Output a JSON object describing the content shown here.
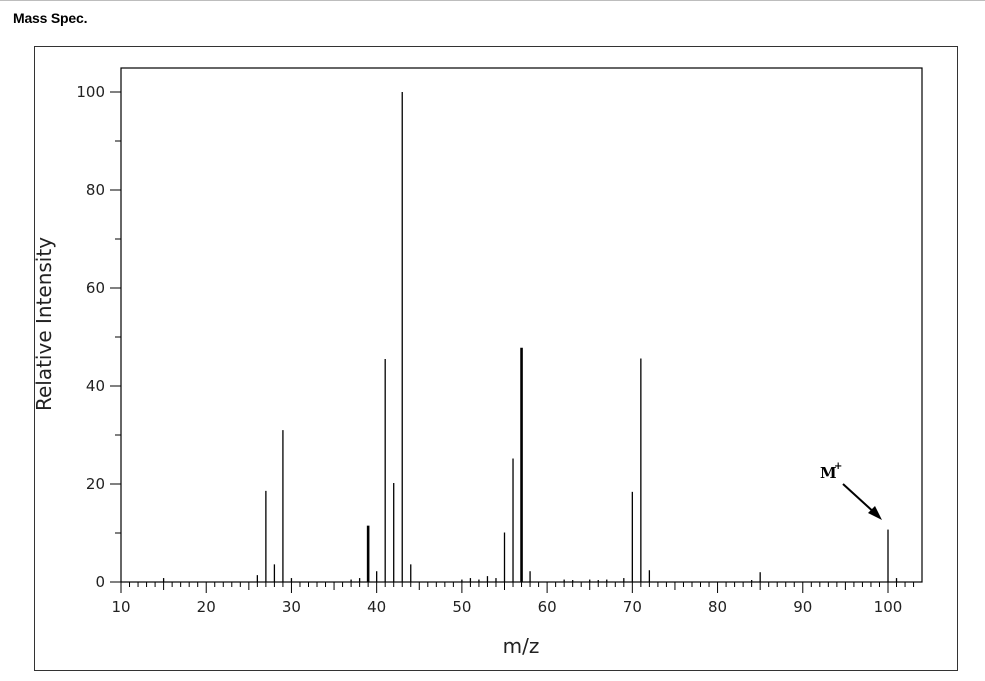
{
  "section": {
    "title": "Mass Spec."
  },
  "chart_data": {
    "type": "bar",
    "title": "",
    "xlabel": "m/z",
    "ylabel": "Relative Intensity",
    "xlim": [
      10,
      104
    ],
    "ylim": [
      0,
      100
    ],
    "grid": false,
    "x_ticks": [
      10,
      20,
      30,
      40,
      50,
      60,
      70,
      80,
      90,
      100
    ],
    "y_ticks": [
      0,
      20,
      40,
      60,
      80,
      100
    ],
    "x": [
      15,
      26,
      27,
      28,
      29,
      30,
      37,
      38,
      39,
      40,
      41,
      42,
      43,
      44,
      50,
      51,
      52,
      53,
      54,
      55,
      56,
      57,
      58,
      62,
      63,
      65,
      66,
      67,
      69,
      70,
      71,
      72,
      84,
      85,
      100,
      101
    ],
    "values": [
      0.8,
      1.4,
      18.6,
      3.6,
      31.0,
      0.8,
      0.5,
      0.8,
      11.5,
      2.2,
      45.5,
      20.2,
      100.0,
      3.6,
      0.5,
      0.8,
      0.5,
      1.2,
      0.8,
      10.1,
      25.2,
      47.8,
      2.2,
      0.5,
      0.4,
      0.5,
      0.4,
      0.5,
      0.8,
      18.4,
      45.6,
      2.4,
      0.4,
      2.0,
      10.7,
      0.8
    ],
    "annotations": [
      {
        "text": "M",
        "superscript": "+",
        "target_x": 100,
        "target_value": 10.7
      }
    ],
    "colors": {
      "bars": "#000000",
      "axes": "#000000",
      "frame": "#333333"
    }
  }
}
